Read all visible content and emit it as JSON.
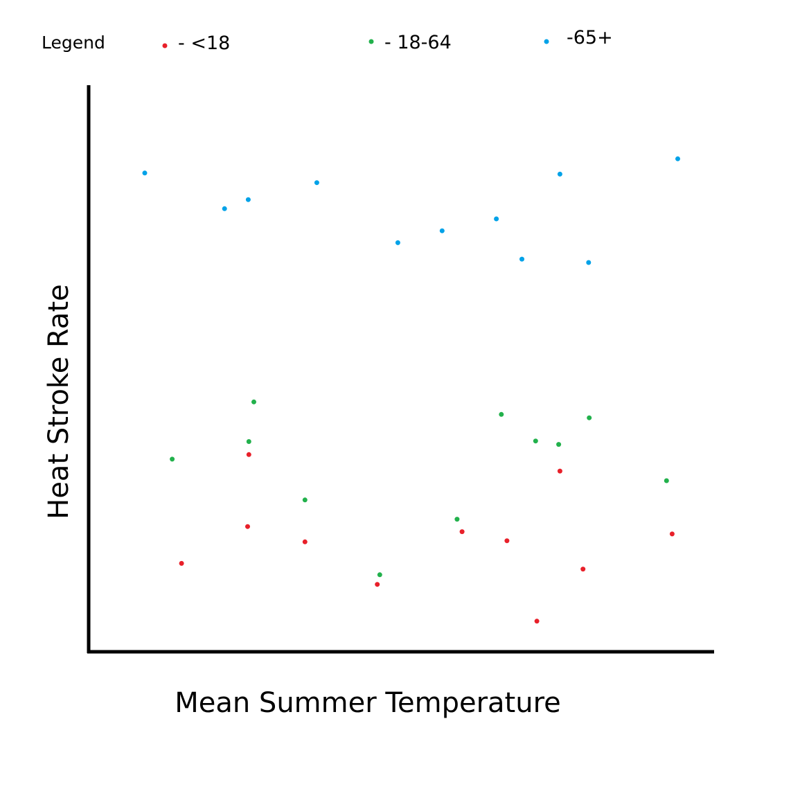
{
  "chart_data": {
    "type": "scatter",
    "title": "",
    "xlabel": "Mean Summer Temperature",
    "ylabel": "Heat Stroke Rate",
    "grid": false,
    "show_ticks": false,
    "xlim": [
      0,
      100
    ],
    "ylim": [
      0,
      100
    ],
    "legend": {
      "title": "Legend",
      "placement": "top",
      "entries": [
        {
          "label": "- <18",
          "color": "#e8202a"
        },
        {
          "label": "- 18-64",
          "color": "#22b14c"
        },
        {
          "label": "-65+",
          "color": "#00a2e8"
        }
      ]
    },
    "series": [
      {
        "color": "#e8202a",
        "points": [
          {
            "x": 14.9,
            "y": 15.6
          },
          {
            "x": 25.5,
            "y": 22.1
          },
          {
            "x": 25.7,
            "y": 34.8
          },
          {
            "x": 34.7,
            "y": 19.4
          },
          {
            "x": 46.3,
            "y": 11.9
          },
          {
            "x": 59.9,
            "y": 21.2
          },
          {
            "x": 67.1,
            "y": 19.6
          },
          {
            "x": 71.9,
            "y": 5.4
          },
          {
            "x": 75.6,
            "y": 31.9
          },
          {
            "x": 79.3,
            "y": 14.6
          },
          {
            "x": 93.6,
            "y": 20.8
          }
        ]
      },
      {
        "color": "#22b14c",
        "points": [
          {
            "x": 13.4,
            "y": 34.0
          },
          {
            "x": 25.7,
            "y": 37.1
          },
          {
            "x": 26.5,
            "y": 44.1
          },
          {
            "x": 34.7,
            "y": 26.8
          },
          {
            "x": 46.7,
            "y": 13.6
          },
          {
            "x": 59.1,
            "y": 23.4
          },
          {
            "x": 66.2,
            "y": 41.9
          },
          {
            "x": 71.7,
            "y": 37.2
          },
          {
            "x": 75.4,
            "y": 36.6
          },
          {
            "x": 80.3,
            "y": 41.3
          },
          {
            "x": 92.7,
            "y": 30.2
          }
        ]
      },
      {
        "color": "#00a2e8",
        "points": [
          {
            "x": 9.0,
            "y": 84.5
          },
          {
            "x": 21.8,
            "y": 78.2
          },
          {
            "x": 25.6,
            "y": 79.8
          },
          {
            "x": 36.6,
            "y": 82.8
          },
          {
            "x": 49.6,
            "y": 72.2
          },
          {
            "x": 56.7,
            "y": 74.3
          },
          {
            "x": 65.4,
            "y": 76.4
          },
          {
            "x": 69.5,
            "y": 69.3
          },
          {
            "x": 75.6,
            "y": 84.3
          },
          {
            "x": 80.2,
            "y": 68.7
          },
          {
            "x": 94.5,
            "y": 87.0
          }
        ]
      }
    ]
  }
}
